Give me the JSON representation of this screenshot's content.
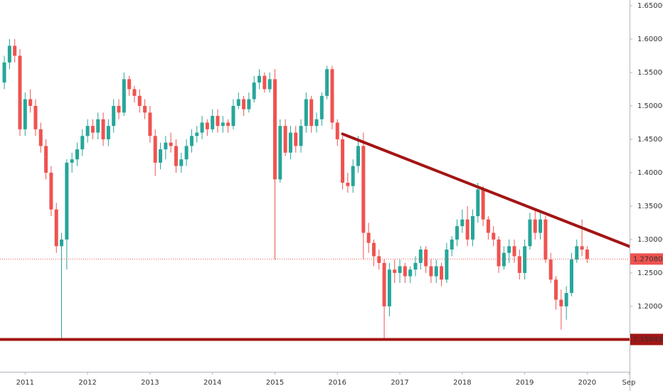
{
  "chart_data": {
    "type": "candlestick",
    "colors": {
      "up": "#26a69a",
      "down": "#ef5350",
      "lines": "#a31515",
      "axis_text": "#333333"
    },
    "x": [
      "2010-09",
      "2010-10",
      "2010-11",
      "2010-12",
      "2011-01",
      "2011-02",
      "2011-03",
      "2011-04",
      "2011-05",
      "2011-06",
      "2011-07",
      "2011-08",
      "2011-09",
      "2011-10",
      "2011-11",
      "2011-12",
      "2012-01",
      "2012-02",
      "2012-03",
      "2012-04",
      "2012-05",
      "2012-06",
      "2012-07",
      "2012-08",
      "2012-09",
      "2012-10",
      "2012-11",
      "2012-12",
      "2013-01",
      "2013-02",
      "2013-03",
      "2013-04",
      "2013-05",
      "2013-06",
      "2013-07",
      "2013-08",
      "2013-09",
      "2013-10",
      "2013-11",
      "2013-12",
      "2014-01",
      "2014-02",
      "2014-03",
      "2014-04",
      "2014-05",
      "2014-06",
      "2014-07",
      "2014-08",
      "2014-09",
      "2014-10",
      "2014-11",
      "2014-12",
      "2015-01",
      "2015-02",
      "2015-03",
      "2015-04",
      "2015-05",
      "2015-06",
      "2015-07",
      "2015-08",
      "2015-09",
      "2015-10",
      "2015-11",
      "2015-12",
      "2016-01",
      "2016-02",
      "2016-03",
      "2016-04",
      "2016-05",
      "2016-06",
      "2016-07",
      "2016-08",
      "2016-09",
      "2016-10",
      "2016-11",
      "2016-12",
      "2017-01",
      "2017-02",
      "2017-03",
      "2017-04",
      "2017-05",
      "2017-06",
      "2017-07",
      "2017-08",
      "2017-09",
      "2017-10",
      "2017-11",
      "2017-12",
      "2018-01",
      "2018-02",
      "2018-03",
      "2018-04",
      "2018-05",
      "2018-06",
      "2018-07",
      "2018-08",
      "2018-09",
      "2018-10",
      "2018-11",
      "2018-12",
      "2019-01",
      "2019-02",
      "2019-03",
      "2019-04",
      "2019-05",
      "2019-06",
      "2019-07",
      "2019-08",
      "2019-09",
      "2019-10",
      "2019-11",
      "2019-12",
      "2020-01"
    ],
    "ohlc": [
      [
        1.535,
        1.575,
        1.525,
        1.565
      ],
      [
        1.565,
        1.6,
        1.555,
        1.59
      ],
      [
        1.59,
        1.6,
        1.565,
        1.575
      ],
      [
        1.575,
        1.585,
        1.455,
        1.465
      ],
      [
        1.465,
        1.52,
        1.455,
        1.51
      ],
      [
        1.51,
        1.525,
        1.49,
        1.5
      ],
      [
        1.5,
        1.51,
        1.455,
        1.465
      ],
      [
        1.465,
        1.475,
        1.43,
        1.44
      ],
      [
        1.44,
        1.45,
        1.39,
        1.4
      ],
      [
        1.4,
        1.41,
        1.335,
        1.345
      ],
      [
        1.345,
        1.355,
        1.28,
        1.29
      ],
      [
        1.29,
        1.31,
        1.1504,
        1.3
      ],
      [
        1.3,
        1.42,
        1.255,
        1.415
      ],
      [
        1.415,
        1.43,
        1.4,
        1.42
      ],
      [
        1.42,
        1.445,
        1.41,
        1.435
      ],
      [
        1.435,
        1.465,
        1.425,
        1.455
      ],
      [
        1.455,
        1.48,
        1.445,
        1.47
      ],
      [
        1.47,
        1.48,
        1.45,
        1.46
      ],
      [
        1.46,
        1.49,
        1.45,
        1.48
      ],
      [
        1.48,
        1.49,
        1.44,
        1.45
      ],
      [
        1.45,
        1.48,
        1.44,
        1.47
      ],
      [
        1.47,
        1.51,
        1.46,
        1.5
      ],
      [
        1.5,
        1.51,
        1.48,
        1.49
      ],
      [
        1.49,
        1.55,
        1.485,
        1.54
      ],
      [
        1.54,
        1.545,
        1.515,
        1.525
      ],
      [
        1.525,
        1.53,
        1.505,
        1.515
      ],
      [
        1.515,
        1.525,
        1.49,
        1.5
      ],
      [
        1.5,
        1.51,
        1.48,
        1.49
      ],
      [
        1.49,
        1.5,
        1.445,
        1.455
      ],
      [
        1.455,
        1.465,
        1.395,
        1.415
      ],
      [
        1.415,
        1.445,
        1.405,
        1.435
      ],
      [
        1.435,
        1.455,
        1.42,
        1.445
      ],
      [
        1.445,
        1.46,
        1.43,
        1.44
      ],
      [
        1.44,
        1.45,
        1.4,
        1.41
      ],
      [
        1.41,
        1.43,
        1.4,
        1.42
      ],
      [
        1.42,
        1.45,
        1.41,
        1.44
      ],
      [
        1.44,
        1.465,
        1.43,
        1.455
      ],
      [
        1.455,
        1.47,
        1.445,
        1.46
      ],
      [
        1.46,
        1.485,
        1.45,
        1.475
      ],
      [
        1.475,
        1.48,
        1.455,
        1.465
      ],
      [
        1.465,
        1.495,
        1.46,
        1.485
      ],
      [
        1.485,
        1.495,
        1.46,
        1.47
      ],
      [
        1.47,
        1.485,
        1.46,
        1.475
      ],
      [
        1.475,
        1.48,
        1.46,
        1.47
      ],
      [
        1.47,
        1.51,
        1.465,
        1.5
      ],
      [
        1.5,
        1.52,
        1.495,
        1.51
      ],
      [
        1.51,
        1.515,
        1.485,
        1.495
      ],
      [
        1.495,
        1.52,
        1.49,
        1.51
      ],
      [
        1.51,
        1.545,
        1.505,
        1.535
      ],
      [
        1.535,
        1.555,
        1.525,
        1.545
      ],
      [
        1.545,
        1.55,
        1.52,
        1.525
      ],
      [
        1.525,
        1.55,
        1.52,
        1.54
      ],
      [
        1.54,
        1.555,
        1.27,
        1.39
      ],
      [
        1.39,
        1.48,
        1.385,
        1.47
      ],
      [
        1.47,
        1.48,
        1.425,
        1.43
      ],
      [
        1.43,
        1.47,
        1.42,
        1.46
      ],
      [
        1.46,
        1.47,
        1.43,
        1.44
      ],
      [
        1.44,
        1.48,
        1.43,
        1.47
      ],
      [
        1.47,
        1.52,
        1.46,
        1.51
      ],
      [
        1.51,
        1.515,
        1.46,
        1.47
      ],
      [
        1.47,
        1.49,
        1.46,
        1.48
      ],
      [
        1.48,
        1.52,
        1.47,
        1.515
      ],
      [
        1.515,
        1.56,
        1.51,
        1.555
      ],
      [
        1.555,
        1.56,
        1.465,
        1.475
      ],
      [
        1.475,
        1.48,
        1.44,
        1.45
      ],
      [
        1.45,
        1.455,
        1.375,
        1.385
      ],
      [
        1.385,
        1.4,
        1.37,
        1.38
      ],
      [
        1.38,
        1.42,
        1.37,
        1.41
      ],
      [
        1.41,
        1.455,
        1.4,
        1.44
      ],
      [
        1.44,
        1.46,
        1.27,
        1.31
      ],
      [
        1.31,
        1.325,
        1.28,
        1.295
      ],
      [
        1.295,
        1.3,
        1.26,
        1.275
      ],
      [
        1.275,
        1.285,
        1.255,
        1.265
      ],
      [
        1.265,
        1.27,
        1.15,
        1.2
      ],
      [
        1.2,
        1.265,
        1.185,
        1.255
      ],
      [
        1.255,
        1.27,
        1.235,
        1.25
      ],
      [
        1.25,
        1.27,
        1.235,
        1.26
      ],
      [
        1.26,
        1.265,
        1.235,
        1.245
      ],
      [
        1.245,
        1.26,
        1.235,
        1.255
      ],
      [
        1.255,
        1.275,
        1.245,
        1.265
      ],
      [
        1.265,
        1.29,
        1.255,
        1.285
      ],
      [
        1.285,
        1.29,
        1.25,
        1.26
      ],
      [
        1.26,
        1.27,
        1.235,
        1.245
      ],
      [
        1.245,
        1.27,
        1.235,
        1.26
      ],
      [
        1.26,
        1.265,
        1.23,
        1.24
      ],
      [
        1.24,
        1.295,
        1.235,
        1.285
      ],
      [
        1.285,
        1.305,
        1.275,
        1.3
      ],
      [
        1.3,
        1.33,
        1.29,
        1.32
      ],
      [
        1.32,
        1.345,
        1.31,
        1.33
      ],
      [
        1.33,
        1.35,
        1.29,
        1.3
      ],
      [
        1.3,
        1.345,
        1.29,
        1.335
      ],
      [
        1.335,
        1.385,
        1.325,
        1.375
      ],
      [
        1.375,
        1.38,
        1.32,
        1.33
      ],
      [
        1.33,
        1.335,
        1.3,
        1.31
      ],
      [
        1.31,
        1.32,
        1.29,
        1.3
      ],
      [
        1.3,
        1.305,
        1.25,
        1.26
      ],
      [
        1.26,
        1.29,
        1.255,
        1.28
      ],
      [
        1.28,
        1.3,
        1.265,
        1.29
      ],
      [
        1.29,
        1.3,
        1.265,
        1.275
      ],
      [
        1.275,
        1.285,
        1.24,
        1.25
      ],
      [
        1.25,
        1.3,
        1.24,
        1.29
      ],
      [
        1.29,
        1.34,
        1.285,
        1.33
      ],
      [
        1.33,
        1.345,
        1.3,
        1.31
      ],
      [
        1.31,
        1.34,
        1.3,
        1.33
      ],
      [
        1.33,
        1.335,
        1.265,
        1.27
      ],
      [
        1.27,
        1.28,
        1.235,
        1.24
      ],
      [
        1.24,
        1.245,
        1.195,
        1.21
      ],
      [
        1.21,
        1.225,
        1.165,
        1.2
      ],
      [
        1.2,
        1.23,
        1.18,
        1.22
      ],
      [
        1.22,
        1.28,
        1.215,
        1.27
      ],
      [
        1.27,
        1.3,
        1.265,
        1.29
      ],
      [
        1.29,
        1.33,
        1.275,
        1.285
      ],
      [
        1.285,
        1.29,
        1.265,
        1.2708
      ]
    ],
    "xlim": [
      "2010-08",
      "2020-10"
    ],
    "ylim": [
      1.102,
      1.6585
    ],
    "yticks": [
      {
        "value": 1.65,
        "label": "1.65000"
      },
      {
        "value": 1.6,
        "label": "1.60000"
      },
      {
        "value": 1.55,
        "label": "1.55000"
      },
      {
        "value": 1.5,
        "label": "1.50000"
      },
      {
        "value": 1.45,
        "label": "1.45000"
      },
      {
        "value": 1.4,
        "label": "1.40000"
      },
      {
        "value": 1.35,
        "label": "1.35000"
      },
      {
        "value": 1.3,
        "label": "1.30000"
      },
      {
        "value": 1.25,
        "label": "1.25000"
      },
      {
        "value": 1.2,
        "label": "1.20000"
      }
    ],
    "xticks": [
      {
        "value": "2011-01",
        "label": "2011"
      },
      {
        "value": "2012-01",
        "label": "2012"
      },
      {
        "value": "2013-01",
        "label": "2013"
      },
      {
        "value": "2014-01",
        "label": "2014"
      },
      {
        "value": "2015-01",
        "label": "2015"
      },
      {
        "value": "2016-01",
        "label": "2016"
      },
      {
        "value": "2017-01",
        "label": "2017"
      },
      {
        "value": "2018-01",
        "label": "2018"
      },
      {
        "value": "2019-01",
        "label": "2019"
      },
      {
        "value": "2020-01",
        "label": "2020"
      },
      {
        "value": "2020-09",
        "label": "Sep"
      }
    ],
    "current_price": {
      "value": 1.2708,
      "label": "1.27080"
    },
    "support": {
      "value": 1.15043,
      "label": "1.15043"
    },
    "trendline": {
      "x": [
        "2016-02",
        "2020-10"
      ],
      "y": [
        1.458,
        1.287
      ]
    }
  }
}
